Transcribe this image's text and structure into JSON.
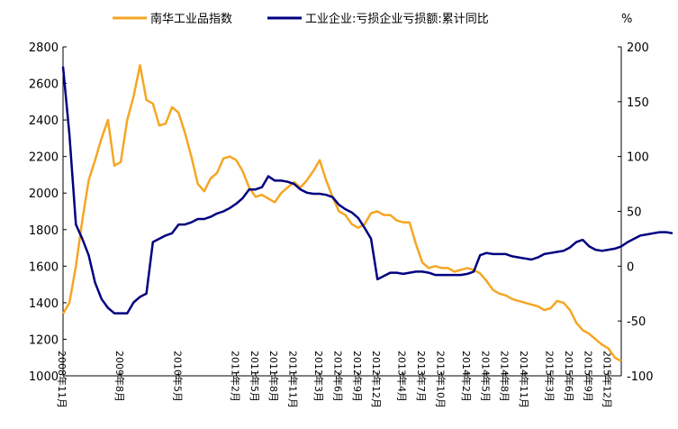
{
  "chart_data": {
    "type": "line",
    "grid": false,
    "legend_position": "top",
    "y_left": {
      "ylim": [
        1000,
        2800
      ],
      "ticks": [
        1000,
        1200,
        1400,
        1600,
        1800,
        2000,
        2200,
        2400,
        2600,
        2800
      ]
    },
    "y_right": {
      "label": "%",
      "ylim": [
        -100,
        200
      ],
      "ticks": [
        -100,
        -50,
        0,
        50,
        100,
        150,
        200
      ]
    },
    "x_tick_labels": [
      "2008年11月",
      "2009年8月",
      "2010年5月",
      "2011年2月",
      "2011年5月",
      "2011年8月",
      "2011年11月",
      "2012年3月",
      "2012年6月",
      "2012年9月",
      "2012年12月",
      "2013年4月",
      "2013年7月",
      "2013年10月",
      "2014年2月",
      "2014年5月",
      "2014年8月",
      "2014年11月",
      "2015年3月",
      "2015年6月",
      "2015年9月",
      "2015年12月"
    ],
    "x_tick_positions": [
      0,
      9,
      18,
      27,
      30,
      33,
      36,
      40,
      43,
      46,
      49,
      53,
      56,
      59,
      63,
      66,
      69,
      72,
      76,
      79,
      82,
      85
    ],
    "series": [
      {
        "name": "南华工业品指数",
        "axis": "left",
        "color": "#F5A623",
        "values": [
          1340,
          1400,
          1600,
          1850,
          2070,
          2180,
          2300,
          2400,
          2150,
          2170,
          2400,
          2530,
          2700,
          2510,
          2490,
          2370,
          2380,
          2470,
          2440,
          2330,
          2200,
          2050,
          2010,
          2080,
          2110,
          2190,
          2200,
          2180,
          2120,
          2030,
          1980,
          1990,
          1970,
          1950,
          2000,
          2030,
          2060,
          2030,
          2070,
          2120,
          2180,
          2070,
          1980,
          1900,
          1880,
          1830,
          1810,
          1830,
          1890,
          1900,
          1880,
          1880,
          1850,
          1840,
          1840,
          1720,
          1620,
          1590,
          1600,
          1590,
          1590,
          1570,
          1580,
          1590,
          1580,
          1560,
          1520,
          1470,
          1450,
          1440,
          1420,
          1410,
          1400,
          1390,
          1380,
          1360,
          1370,
          1410,
          1400,
          1360,
          1290,
          1250,
          1230,
          1200,
          1170,
          1150,
          1100,
          1080
        ]
      },
      {
        "name": "工业企业:亏损企业亏损额:累计同比",
        "axis": "right",
        "color": "#000080",
        "values": [
          182,
          120,
          38,
          25,
          10,
          -15,
          -30,
          -38,
          -43,
          -43,
          -43,
          -33,
          -28,
          -25,
          22,
          25,
          28,
          30,
          38,
          38,
          40,
          43,
          43,
          45,
          48,
          50,
          53,
          57,
          62,
          70,
          70,
          72,
          82,
          78,
          78,
          77,
          75,
          70,
          67,
          66,
          66,
          65,
          63,
          56,
          52,
          49,
          44,
          35,
          25,
          -12,
          -9,
          -6,
          -6,
          -7,
          -6,
          -5,
          -5,
          -6,
          -8,
          -8,
          -8,
          -8,
          -8,
          -7,
          -5,
          10,
          12,
          11,
          11,
          11,
          9,
          8,
          7,
          6,
          8,
          11,
          12,
          13,
          14,
          17,
          22,
          24,
          18,
          15,
          14,
          15,
          16,
          18,
          22,
          25,
          28,
          29,
          30,
          31,
          31,
          30
        ]
      }
    ]
  }
}
